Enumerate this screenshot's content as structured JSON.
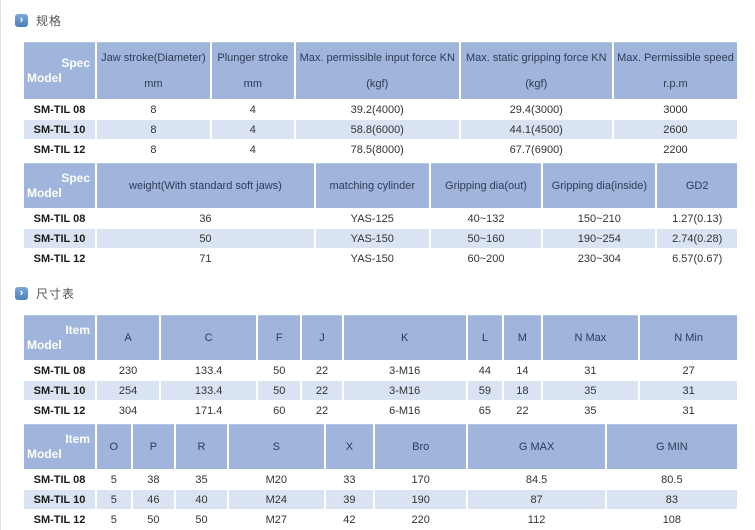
{
  "sections": [
    {
      "title": "规格"
    },
    {
      "title": "尺寸表"
    }
  ],
  "spec_table": {
    "corner": {
      "top_label": "Spec",
      "bottom_label": "Model"
    },
    "part1": {
      "headers": [
        "Jaw stroke(Diameter) mm",
        "Plunger stroke mm",
        "Max. permissible input force KN(kgf)",
        "Max. static gripping force KN(kgf)",
        "Max. Permissible speed r.p.m"
      ],
      "rows": [
        {
          "model": "SM-TIL 08",
          "values": [
            "8",
            "4",
            "39.2(4000)",
            "29.4(3000)",
            "3000"
          ]
        },
        {
          "model": "SM-TIL 10",
          "values": [
            "8",
            "4",
            "58.8(6000)",
            "44.1(4500)",
            "2600"
          ]
        },
        {
          "model": "SM-TIL 12",
          "values": [
            "8",
            "4",
            "78.5(8000)",
            "67.7(6900)",
            "2200"
          ]
        }
      ]
    },
    "part2": {
      "headers": [
        "weight(With standard soft jaws)",
        "matching cylinder",
        "Gripping dia(out)",
        "Gripping dia(inside)",
        "GD2"
      ],
      "rows": [
        {
          "model": "SM-TIL 08",
          "values": [
            "36",
            "YAS-125",
            "40~132",
            "150~210",
            "1.27(0.13)"
          ]
        },
        {
          "model": "SM-TIL 10",
          "values": [
            "50",
            "YAS-150",
            "50~160",
            "190~254",
            "2.74(0.28)"
          ]
        },
        {
          "model": "SM-TIL 12",
          "values": [
            "71",
            "YAS-150",
            "60~200",
            "230~304",
            "6.57(0.67)"
          ]
        }
      ]
    }
  },
  "dim_table": {
    "corner": {
      "top_label": "Item",
      "bottom_label": "Model"
    },
    "part1": {
      "headers": [
        "A",
        "C",
        "F",
        "J",
        "K",
        "L",
        "M",
        "N Max",
        "N Min"
      ],
      "rows": [
        {
          "model": "SM-TIL 08",
          "values": [
            "230",
            "133.4",
            "50",
            "22",
            "3-M16",
            "44",
            "14",
            "31",
            "27"
          ]
        },
        {
          "model": "SM-TIL 10",
          "values": [
            "254",
            "133.4",
            "50",
            "22",
            "3-M16",
            "59",
            "18",
            "35",
            "31"
          ]
        },
        {
          "model": "SM-TIL 12",
          "values": [
            "304",
            "171.4",
            "60",
            "22",
            "6-M16",
            "65",
            "22",
            "35",
            "31"
          ]
        }
      ]
    },
    "part2": {
      "headers": [
        "O",
        "P",
        "R",
        "S",
        "X",
        "Bro",
        "G MAX",
        "G MIN"
      ],
      "rows": [
        {
          "model": "SM-TIL 08",
          "values": [
            "5",
            "38",
            "35",
            "M20",
            "33",
            "170",
            "84.5",
            "80.5"
          ]
        },
        {
          "model": "SM-TIL 10",
          "values": [
            "5",
            "46",
            "40",
            "M24",
            "39",
            "190",
            "87",
            "83"
          ]
        },
        {
          "model": "SM-TIL 12",
          "values": [
            "5",
            "50",
            "50",
            "M27",
            "42",
            "220",
            "112",
            "108"
          ]
        }
      ]
    }
  },
  "colors": {
    "header_bg": "#9fb5dc",
    "row_alt_bg": "#d9e3f2",
    "header_text": "#2f3b55",
    "bullet_bg": "#5b8cc8"
  }
}
